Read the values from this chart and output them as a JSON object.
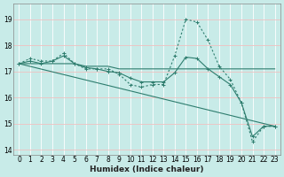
{
  "xlabel": "Humidex (Indice chaleur)",
  "background_color": "#c8ebe8",
  "grid_color_major": "#f0c8c8",
  "grid_color_minor": "#ffffff",
  "line_color": "#2e7d6e",
  "xlim": [
    -0.5,
    23.5
  ],
  "ylim": [
    13.8,
    19.6
  ],
  "xticks": [
    0,
    1,
    2,
    3,
    4,
    5,
    6,
    7,
    8,
    9,
    10,
    11,
    12,
    13,
    14,
    15,
    16,
    17,
    18,
    19,
    20,
    21,
    22,
    23
  ],
  "yticks": [
    14,
    15,
    16,
    17,
    18,
    19
  ],
  "series1_x": [
    0,
    1,
    2,
    3,
    4,
    5,
    6,
    7,
    8,
    9,
    10,
    11,
    12,
    13,
    14,
    15,
    16,
    17,
    18,
    19,
    20,
    21,
    22,
    23
  ],
  "series1_y": [
    17.3,
    17.5,
    17.4,
    17.4,
    17.7,
    17.3,
    17.1,
    17.1,
    17.1,
    16.9,
    16.5,
    16.4,
    16.5,
    16.5,
    17.6,
    19.0,
    18.9,
    18.2,
    17.2,
    16.7,
    15.8,
    14.3,
    14.9,
    14.9
  ],
  "series2_x": [
    0,
    1,
    2,
    3,
    4,
    5,
    6,
    7,
    8,
    9,
    10,
    11,
    12,
    13,
    14,
    15,
    16,
    17,
    18,
    19,
    20,
    21,
    22,
    23
  ],
  "series2_y": [
    17.3,
    17.3,
    17.3,
    17.3,
    17.3,
    17.3,
    17.2,
    17.2,
    17.2,
    17.1,
    17.1,
    17.1,
    17.1,
    17.1,
    17.1,
    17.1,
    17.1,
    17.1,
    17.1,
    17.1,
    17.1,
    17.1,
    17.1,
    17.1
  ],
  "series3_x": [
    0,
    1,
    2,
    3,
    4,
    5,
    6,
    7,
    8,
    9,
    10,
    11,
    12,
    13,
    14,
    15,
    16,
    17,
    18,
    19,
    20,
    21,
    22,
    23
  ],
  "series3_y": [
    17.3,
    17.4,
    17.3,
    17.4,
    17.6,
    17.3,
    17.15,
    17.1,
    17.0,
    16.95,
    16.75,
    16.6,
    16.6,
    16.6,
    16.95,
    17.55,
    17.5,
    17.1,
    16.8,
    16.5,
    15.8,
    14.5,
    14.9,
    14.9
  ],
  "series4_x": [
    0,
    23
  ],
  "series4_y": [
    17.3,
    14.9
  ]
}
